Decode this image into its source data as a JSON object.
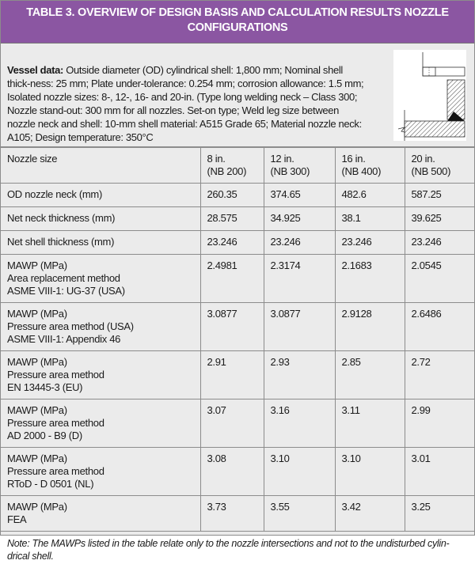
{
  "title": "TABLE 3. OVERVIEW OF DESIGN BASIS AND CALCULATION RESULTS NOZZLE CONFIGURATIONS",
  "vessel": {
    "label": "Vessel data:",
    "text": " Outside diameter (OD) cylindrical shell: 1,800 mm; Nominal shell thick-ness: 25 mm; Plate under-tolerance: 0.254 mm; corrosion allowance: 1.5 mm; Isolated nozzle sizes: 8-, 12-, 16- and 20-in. (Type long welding neck – Class 300; Nozzle stand-out: 300 mm for all nozzles. Set-on type; Weld leg size between nozzle neck and shell: 10-mm shell material: A515 Grade 65; Material nozzle neck: A105; Design temperature: 350°C"
  },
  "table": {
    "header": [
      "Nozzle size",
      "8 in.\n (NB 200)",
      "12 in.\n(NB 300)",
      "16 in.\n (NB 400)",
      "20 in.\n(NB 500)"
    ],
    "rows": [
      [
        "OD nozzle neck (mm)",
        "260.35",
        "374.65",
        "482.6",
        "587.25"
      ],
      [
        "Net neck thickness (mm)",
        "28.575",
        "34.925",
        "38.1",
        "39.625"
      ],
      [
        "Net shell thickness (mm)",
        "23.246",
        "23.246",
        "23.246",
        "23.246"
      ],
      [
        "MAWP  (MPa)\nArea replacement method\nASME VIII-1: UG-37 (USA)",
        "2.4981",
        "2.3174",
        "2.1683",
        "2.0545"
      ],
      [
        "MAWP  (MPa)\nPressure area method (USA)\nASME VIII-1: Appendix 46",
        "3.0877",
        "3.0877",
        "2.9128",
        "2.6486"
      ],
      [
        "MAWP (MPa)\nPressure area method\nEN 13445-3 (EU)",
        "2.91",
        "2.93",
        "2.85",
        "2.72"
      ],
      [
        "MAWP (MPa)\nPressure area method\nAD 2000 - B9 (D)",
        "3.07",
        "3.16",
        "3.11",
        "2.99"
      ],
      [
        "MAWP (MPa)\nPressure area method\nRToD - D 0501 (NL)",
        "3.08",
        "3.10",
        "3.10",
        "3.01"
      ],
      [
        "MAWP (MPa)\nFEA",
        "3.73",
        "3.55",
        "3.42",
        "3.25"
      ]
    ]
  },
  "note": "Note: The MAWPs listed in the table relate only to the nozzle intersections and not to the undisturbed cylin-drical shell.",
  "colors": {
    "header_bg": "#8b56a2",
    "body_bg": "#ebebeb",
    "border": "#8c8c8c"
  }
}
